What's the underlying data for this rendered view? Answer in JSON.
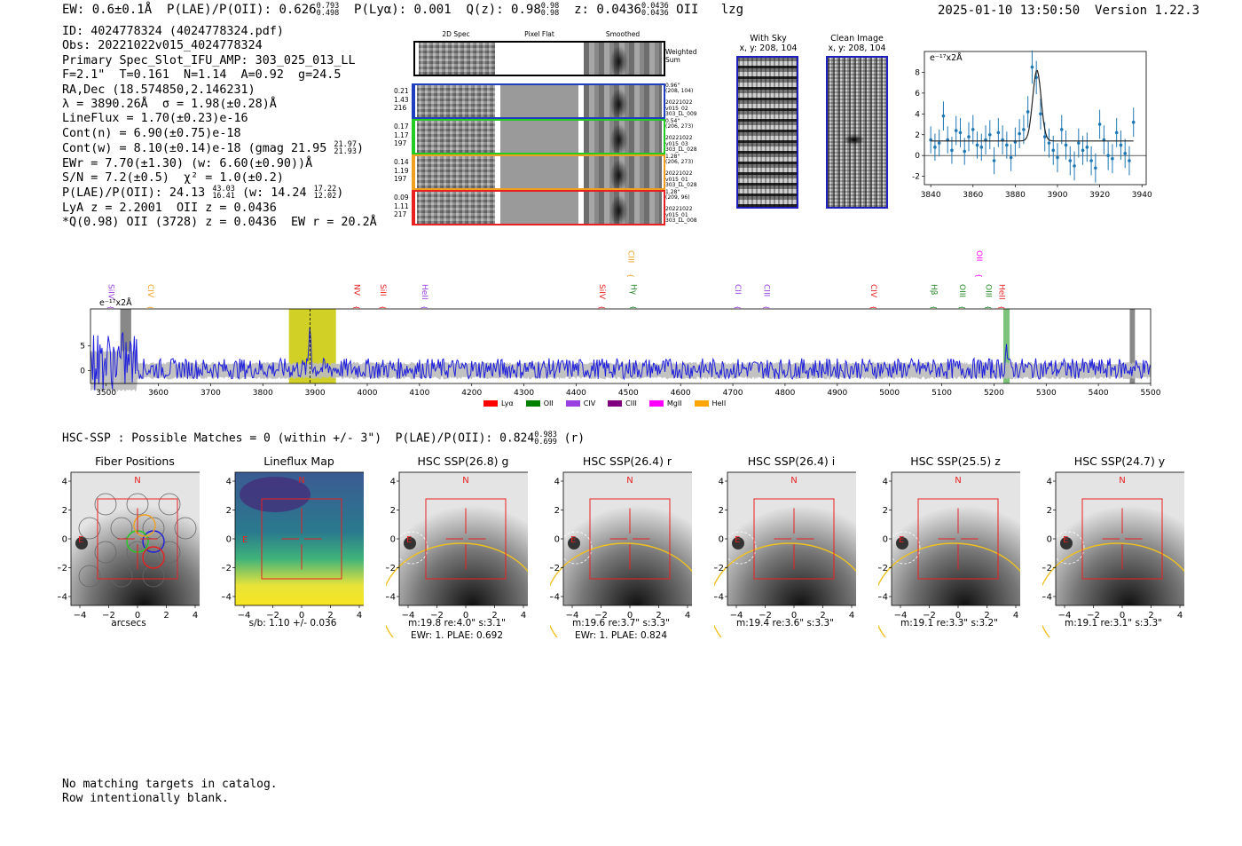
{
  "header": {
    "ew_text": "EW: 0.6±0.1Å",
    "plae_label": "P(LAE)/P(OII): 0.626",
    "plae_hi": "0.793",
    "plae_lo": "0.498",
    "plya_text": "P(Lyα): 0.001",
    "q_label": "Q(z): 0.98",
    "q_hi": "0.98",
    "q_lo": "0.98",
    "z_label": "z: 0.0436",
    "z_hi": "0.0436",
    "z_lo": "0.0436",
    "line_name": "OII",
    "tag": "lzg",
    "datetime": "2025-01-10 13:50:50",
    "version": "Version 1.22.3"
  },
  "info": {
    "id": "ID: 4024778324 (4024778324.pdf)",
    "obs": "Obs: 20221022v015_4024778324",
    "primary": "Primary Spec_Slot_IFU_AMP: 303_025_013_LL",
    "fit": "F=2.1\"  T=0.161  N=1.14  A=0.92  g=24.5",
    "radec": "RA,Dec (18.574850,2.146231)",
    "lambda": "λ = 3890.26Å  σ = 1.98(±0.28)Å",
    "lineflux": "LineFlux = 1.70(±0.23)e-16",
    "contn": "Cont(n) = 6.90(±0.75)e-18",
    "contw": "Cont(w) = 8.10(±0.14)e-18 (gmag 21.95",
    "gmag_hi": "21.97",
    "gmag_lo": "21.93",
    "contw_end": ")",
    "ewr": "EWr = 7.70(±1.30) (w: 6.60(±0.90))Å",
    "sn": "S/N = 7.2(±0.5)  χ² = 1.0(±0.2)",
    "plae": "P(LAE)/P(OII): 24.13",
    "plae_hi": "43.03",
    "plae_lo": "16.41",
    "plae_w": "(w: 14.24",
    "plae_w_hi": "17.22",
    "plae_w_lo": "12.02",
    "plae_w_end": ")",
    "lya": "LyA z = 2.2001  OII z = 0.0436",
    "q": "*Q(0.98) OII (3728) z = 0.0436  EW r = 20.2Å"
  },
  "fiber_panel": {
    "col_2d": "2D Spec",
    "col_flat": "Pixel Flat",
    "col_smooth": "Smoothed",
    "weighted_sum": "Weighted\nSum",
    "rows": [
      {
        "vals": "0.21\n1.43\n216",
        "meta": "0.96\"\n(208, 104)\n\n20221022\nv015_02\n303_LL_009",
        "color": "#1f3fbf"
      },
      {
        "vals": "0.17\n1.17\n197",
        "meta": "0.54\"\n(206, 273)\n\n20221022\nv015_03\n303_LL_028",
        "color": "#22cc22"
      },
      {
        "vals": "0.14\n1.19\n197",
        "meta": "1.28\"\n(206, 273)\n\n20221022\nv015_01\n303_LL_028",
        "color": "#f0a020"
      },
      {
        "vals": "0.09\n1.11\n217",
        "meta": "1.28\"\n(209, 96)\n\n20221022\nv015_01\n303_LL_008",
        "color": "#e82020"
      }
    ]
  },
  "cutouts": {
    "sky_title": "With Sky",
    "sky_coords": "x, y: 208, 104",
    "clean_title": "Clean Image",
    "clean_coords": "x, y: 208, 104"
  },
  "zoom_chart": {
    "type": "scatter",
    "unit_label": "e⁻¹⁷x2Å",
    "x": [
      3840,
      3842,
      3844,
      3846,
      3848,
      3850,
      3852,
      3854,
      3856,
      3858,
      3860,
      3862,
      3864,
      3866,
      3868,
      3870,
      3872,
      3874,
      3876,
      3878,
      3880,
      3882,
      3884,
      3886,
      3888,
      3890,
      3892,
      3894,
      3896,
      3898,
      3900,
      3902,
      3904,
      3906,
      3908,
      3910,
      3912,
      3914,
      3916,
      3918,
      3920,
      3922,
      3924,
      3926,
      3928,
      3930,
      3932,
      3934,
      3936
    ],
    "y": [
      1.5,
      0.8,
      1.2,
      3.8,
      1.5,
      0.5,
      2.4,
      2.2,
      0.4,
      1.8,
      2.5,
      1.0,
      0.8,
      1.5,
      2.0,
      -0.5,
      2.2,
      1.5,
      1.0,
      -0.2,
      1.3,
      2.1,
      2.5,
      4.2,
      8.5,
      7.5,
      4.0,
      1.8,
      1.2,
      0.5,
      -0.2,
      2.5,
      1.0,
      -0.5,
      -1.0,
      1.2,
      0.5,
      0.8,
      -0.5,
      -1.2,
      3.0,
      1.5,
      0.0,
      -0.3,
      2.2,
      1.0,
      0.2,
      -0.5,
      3.2
    ],
    "err": [
      1.3,
      1.3,
      1.3,
      1.4,
      1.3,
      1.3,
      1.4,
      1.4,
      1.3,
      1.4,
      1.4,
      1.3,
      1.3,
      1.4,
      1.4,
      1.3,
      1.4,
      1.4,
      1.3,
      1.3,
      1.4,
      1.4,
      1.4,
      1.5,
      1.6,
      1.6,
      1.5,
      1.4,
      1.4,
      1.4,
      1.4,
      1.4,
      1.4,
      1.4,
      1.4,
      1.4,
      1.4,
      1.4,
      1.4,
      1.4,
      1.4,
      1.4,
      1.4,
      1.4,
      1.4,
      1.4,
      1.4,
      1.4,
      1.4
    ],
    "fit_baseline": 1.4,
    "fit_peak": 8.2,
    "fit_center": 3890.26,
    "fit_sigma": 1.98,
    "xlim": [
      3837,
      3942
    ],
    "ylim": [
      -2.8,
      10
    ],
    "xticks": [
      "3840",
      "3860",
      "3880",
      "3900",
      "3920",
      "3940"
    ],
    "yticks": [
      "-2",
      "0",
      "2",
      "4",
      "6",
      "8"
    ]
  },
  "full_spectrum": {
    "type": "line",
    "unit_label": "e⁻¹⁷x2Å",
    "xlim": [
      3470,
      5500
    ],
    "ylim": [
      -2.6,
      12.5
    ],
    "xticks": [
      "3500",
      "3600",
      "3700",
      "3800",
      "3900",
      "4000",
      "4100",
      "4200",
      "4300",
      "4400",
      "4500",
      "4600",
      "4700",
      "4800",
      "4900",
      "5000",
      "5100",
      "5200",
      "5300",
      "5400",
      "5500"
    ],
    "yticks": [
      "0",
      "5"
    ],
    "highlight_range": [
      3850,
      3940
    ],
    "emission_wave": 3890.26,
    "emission_peak": 9.0,
    "green_band": [
      5218,
      5230
    ],
    "masked_bands": [
      [
        3527,
        3548
      ],
      [
        5460,
        5470
      ]
    ],
    "line_labels": [
      {
        "name": "SiIV",
        "wave": 3500,
        "color": "#9a40e0",
        "high": false
      },
      {
        "name": "CIV",
        "wave": 3575,
        "color": "#f0a020",
        "high": false
      },
      {
        "name": "NV",
        "wave": 3970,
        "color": "#e82020",
        "high": false
      },
      {
        "name": "SiII",
        "wave": 4020,
        "color": "#e82020",
        "high": false
      },
      {
        "name": "HeII",
        "wave": 4100,
        "color": "#9a40e0",
        "high": false
      },
      {
        "name": "SiIV",
        "wave": 4440,
        "color": "#e82020",
        "high": false
      },
      {
        "name": "CIII",
        "wave": 4495,
        "color": "#f0a020",
        "high": true
      },
      {
        "name": "Hγ",
        "wave": 4500,
        "color": "#228822",
        "high": false
      },
      {
        "name": "CII",
        "wave": 4700,
        "color": "#9a40e0",
        "high": false
      },
      {
        "name": "CIII",
        "wave": 4755,
        "color": "#9a40e0",
        "high": false
      },
      {
        "name": "CIV",
        "wave": 4960,
        "color": "#e82020",
        "high": false
      },
      {
        "name": "Hβ",
        "wave": 5075,
        "color": "#228822",
        "high": false
      },
      {
        "name": "OIII",
        "wave": 5130,
        "color": "#228822",
        "high": false
      },
      {
        "name": "OII",
        "wave": 5162,
        "color": "#ff00ff",
        "high": true
      },
      {
        "name": "OIII",
        "wave": 5180,
        "color": "#228822",
        "high": false
      },
      {
        "name": "HeII",
        "wave": 5205,
        "color": "#e82020",
        "high": false
      }
    ],
    "legend": [
      {
        "name": "Lyα",
        "color": "#ff0000"
      },
      {
        "name": "OII",
        "color": "#008000"
      },
      {
        "name": "CIV",
        "color": "#9a40e0"
      },
      {
        "name": "CIII",
        "color": "#800080"
      },
      {
        "name": "MgII",
        "color": "#ff00ff"
      },
      {
        "name": "HeII",
        "color": "#ffa500"
      }
    ]
  },
  "hsc": {
    "summary": "HSC-SSP : Possible Matches = 0 (within +/- 3\")  P(LAE)/P(OII): 0.824",
    "plae_hi": "0.983",
    "plae_lo": "0.699",
    "band": "(r)",
    "north": "N",
    "east": "E",
    "panels": [
      {
        "title": "Fiber Positions",
        "caption1": "arcsecs",
        "caption2": ""
      },
      {
        "title": "Lineflux Map",
        "caption1": "s/b: 1.10 +/- 0.036",
        "caption2": ""
      },
      {
        "title": "HSC SSP(26.8) g",
        "caption1": "m:19.8  re:4.0\"  s:3.1\"",
        "caption2": "EWr: 1. PLAE: 0.692"
      },
      {
        "title": "HSC SSP(26.4) r",
        "caption1": "m:19.6  re:3.7\"  s:3.3\"",
        "caption2": "EWr: 1. PLAE: 0.824"
      },
      {
        "title": "HSC SSP(26.4) i",
        "caption1": "m:19.4  re:3.6\"  s:3.3\"",
        "caption2": ""
      },
      {
        "title": "HSC SSP(25.5) z",
        "caption1": "m:19.1  re:3.3\"  s:3.2\"",
        "caption2": ""
      },
      {
        "title": "HSC SSP(24.7) y",
        "caption1": "m:19.1  re:3.1\"  s:3.3\"",
        "caption2": ""
      }
    ],
    "xticks": [
      "−4",
      "−2",
      "0",
      "2",
      "4"
    ],
    "yticks": [
      "4",
      "2",
      "0",
      "−2",
      "−4"
    ]
  },
  "footer": {
    "line1": "No matching targets in catalog.",
    "line2": "Row intentionally blank."
  }
}
